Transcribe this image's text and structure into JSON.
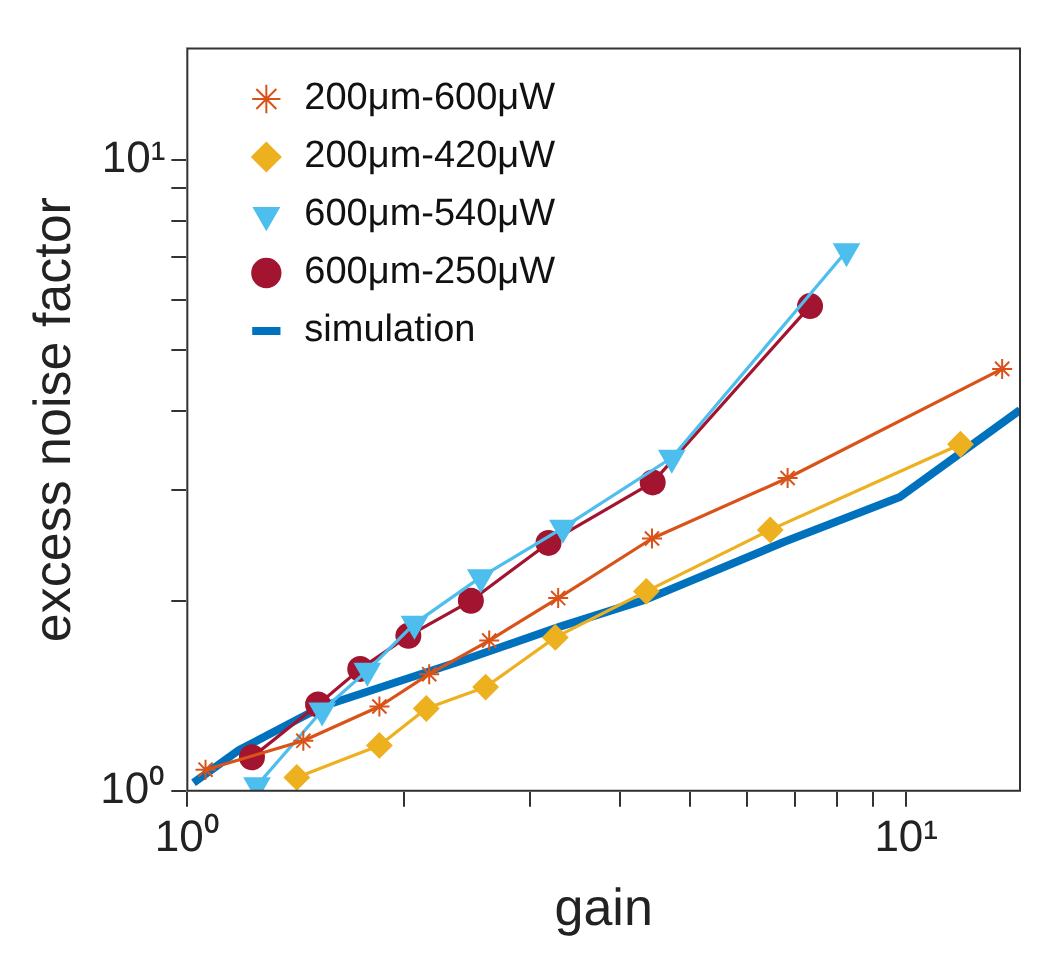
{
  "chart_data": {
    "type": "line",
    "xlabel": "gain",
    "ylabel": "excess noise factor",
    "log": "xy",
    "xlim": [
      1,
      14.4
    ],
    "ylim": [
      1,
      15
    ],
    "xticks": [
      {
        "value": 1,
        "label": "10⁰"
      },
      {
        "value": 2,
        "label": null
      },
      {
        "value": 3,
        "label": null
      },
      {
        "value": 4,
        "label": null
      },
      {
        "value": 5,
        "label": null
      },
      {
        "value": 6,
        "label": null
      },
      {
        "value": 7,
        "label": null
      },
      {
        "value": 8,
        "label": null
      },
      {
        "value": 9,
        "label": null
      },
      {
        "value": 10,
        "label": "10¹"
      }
    ],
    "yticks": [
      {
        "value": 1,
        "label": "10⁰"
      },
      {
        "value": 2,
        "label": null
      },
      {
        "value": 3,
        "label": null
      },
      {
        "value": 4,
        "label": null
      },
      {
        "value": 5,
        "label": null
      },
      {
        "value": 6,
        "label": null
      },
      {
        "value": 7,
        "label": null
      },
      {
        "value": 8,
        "label": null
      },
      {
        "value": 9,
        "label": null
      },
      {
        "value": 10,
        "label": "10¹"
      }
    ],
    "grid": false,
    "legend": "top left",
    "line_style": "solid",
    "series": [
      {
        "name": "200μm-600μW",
        "color": "#d95319",
        "marker": "cross",
        "x": [
          1.06,
          1.45,
          1.85,
          2.17,
          2.63,
          3.28,
          4.43,
          6.84,
          13.6
        ],
        "values": [
          1.08,
          1.2,
          1.36,
          1.53,
          1.73,
          2.02,
          2.51,
          3.13,
          4.66
        ]
      },
      {
        "name": "200μm-420μW",
        "color": "#edb120",
        "marker": "diamond",
        "x": [
          1.42,
          1.85,
          2.15,
          2.6,
          3.25,
          4.35,
          6.47,
          11.9
        ],
        "values": [
          1.05,
          1.18,
          1.35,
          1.46,
          1.75,
          2.07,
          2.59,
          3.54
        ]
      },
      {
        "name": "600μm-540μW",
        "color": "#4dbeee",
        "marker": "triangle",
        "x": [
          1.25,
          1.54,
          1.78,
          2.07,
          2.56,
          3.33,
          4.72,
          8.26
        ],
        "values": [
          1.02,
          1.34,
          1.55,
          1.84,
          2.18,
          2.61,
          3.37,
          7.16
        ]
      },
      {
        "name": "600μm-250μW",
        "color": "#a2142f",
        "marker": "circle",
        "x": [
          1.23,
          1.52,
          1.74,
          2.03,
          2.48,
          3.18,
          4.44,
          7.35
        ],
        "values": [
          1.13,
          1.37,
          1.56,
          1.76,
          2.0,
          2.47,
          3.08,
          5.86
        ]
      },
      {
        "name": "simulation",
        "color": "#0072bd",
        "marker": "none",
        "x": [
          1.02,
          1.18,
          1.54,
          2.42,
          3.3,
          4.35,
          6.77,
          9.8,
          14.4
        ],
        "values": [
          1.03,
          1.16,
          1.36,
          1.61,
          1.82,
          2.01,
          2.48,
          2.92,
          4.01
        ]
      }
    ]
  }
}
